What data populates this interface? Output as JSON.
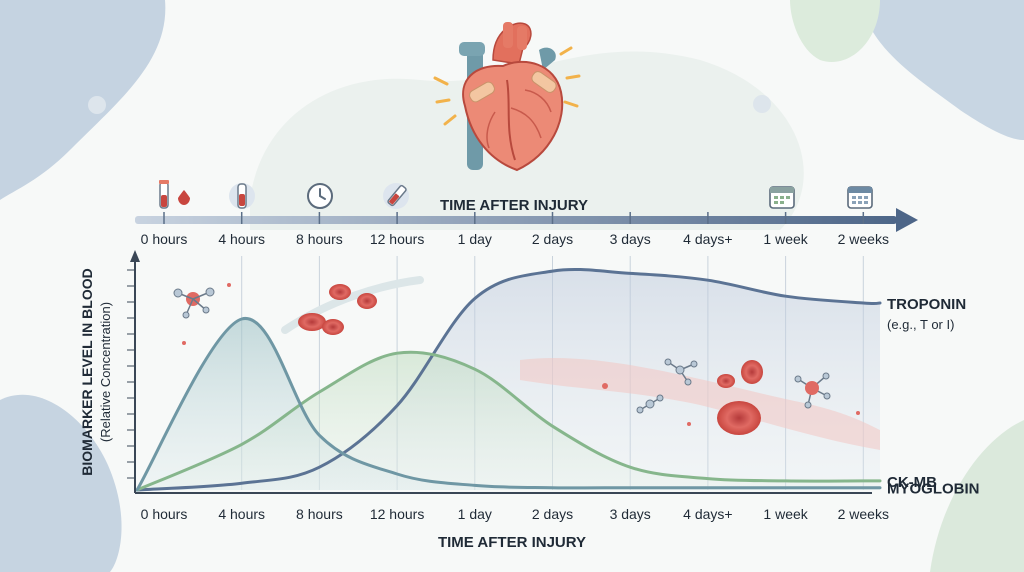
{
  "chart_data": {
    "type": "line",
    "title": "",
    "top_axis_title": "TIME AFTER INJURY",
    "xlabel": "TIME AFTER INJURY",
    "ylabel": "BIOMARKER LEVEL IN BLOOD",
    "ylabel_sub": "(Relative Concentration)",
    "categories": [
      "0 hours",
      "4 hours",
      "8 hours",
      "12 hours",
      "1 day",
      "2 days",
      "3 days",
      "4 days+",
      "1 week",
      "2 weeks"
    ],
    "y_ticks_labeled": false,
    "ylim": [
      0,
      100
    ],
    "grid": "vertical",
    "series": [
      {
        "name": "TROPONIN",
        "sublabel": "(e.g., T or I)",
        "color": "#5b7394",
        "values": [
          0,
          3,
          10,
          37,
          84,
          96,
          95,
          92,
          85,
          82
        ]
      },
      {
        "name": "CK-MB",
        "color": "#86b68c",
        "values": [
          0,
          20,
          43,
          60,
          53,
          28,
          10,
          5,
          4,
          4
        ]
      },
      {
        "name": "MYOGLOBIN",
        "color": "#6f97a4",
        "values": [
          0,
          75,
          24,
          7,
          2,
          1,
          1,
          1,
          1,
          1
        ]
      }
    ],
    "legend_placement": "right, labels at line ends"
  },
  "icons": {
    "heart": "heart-icon",
    "top_axis": [
      "blood-sample-tube-icon",
      "blood-vial-icon",
      "clock-icon",
      "syringe-icon",
      "calendar-icon",
      "calendar-icon"
    ]
  }
}
